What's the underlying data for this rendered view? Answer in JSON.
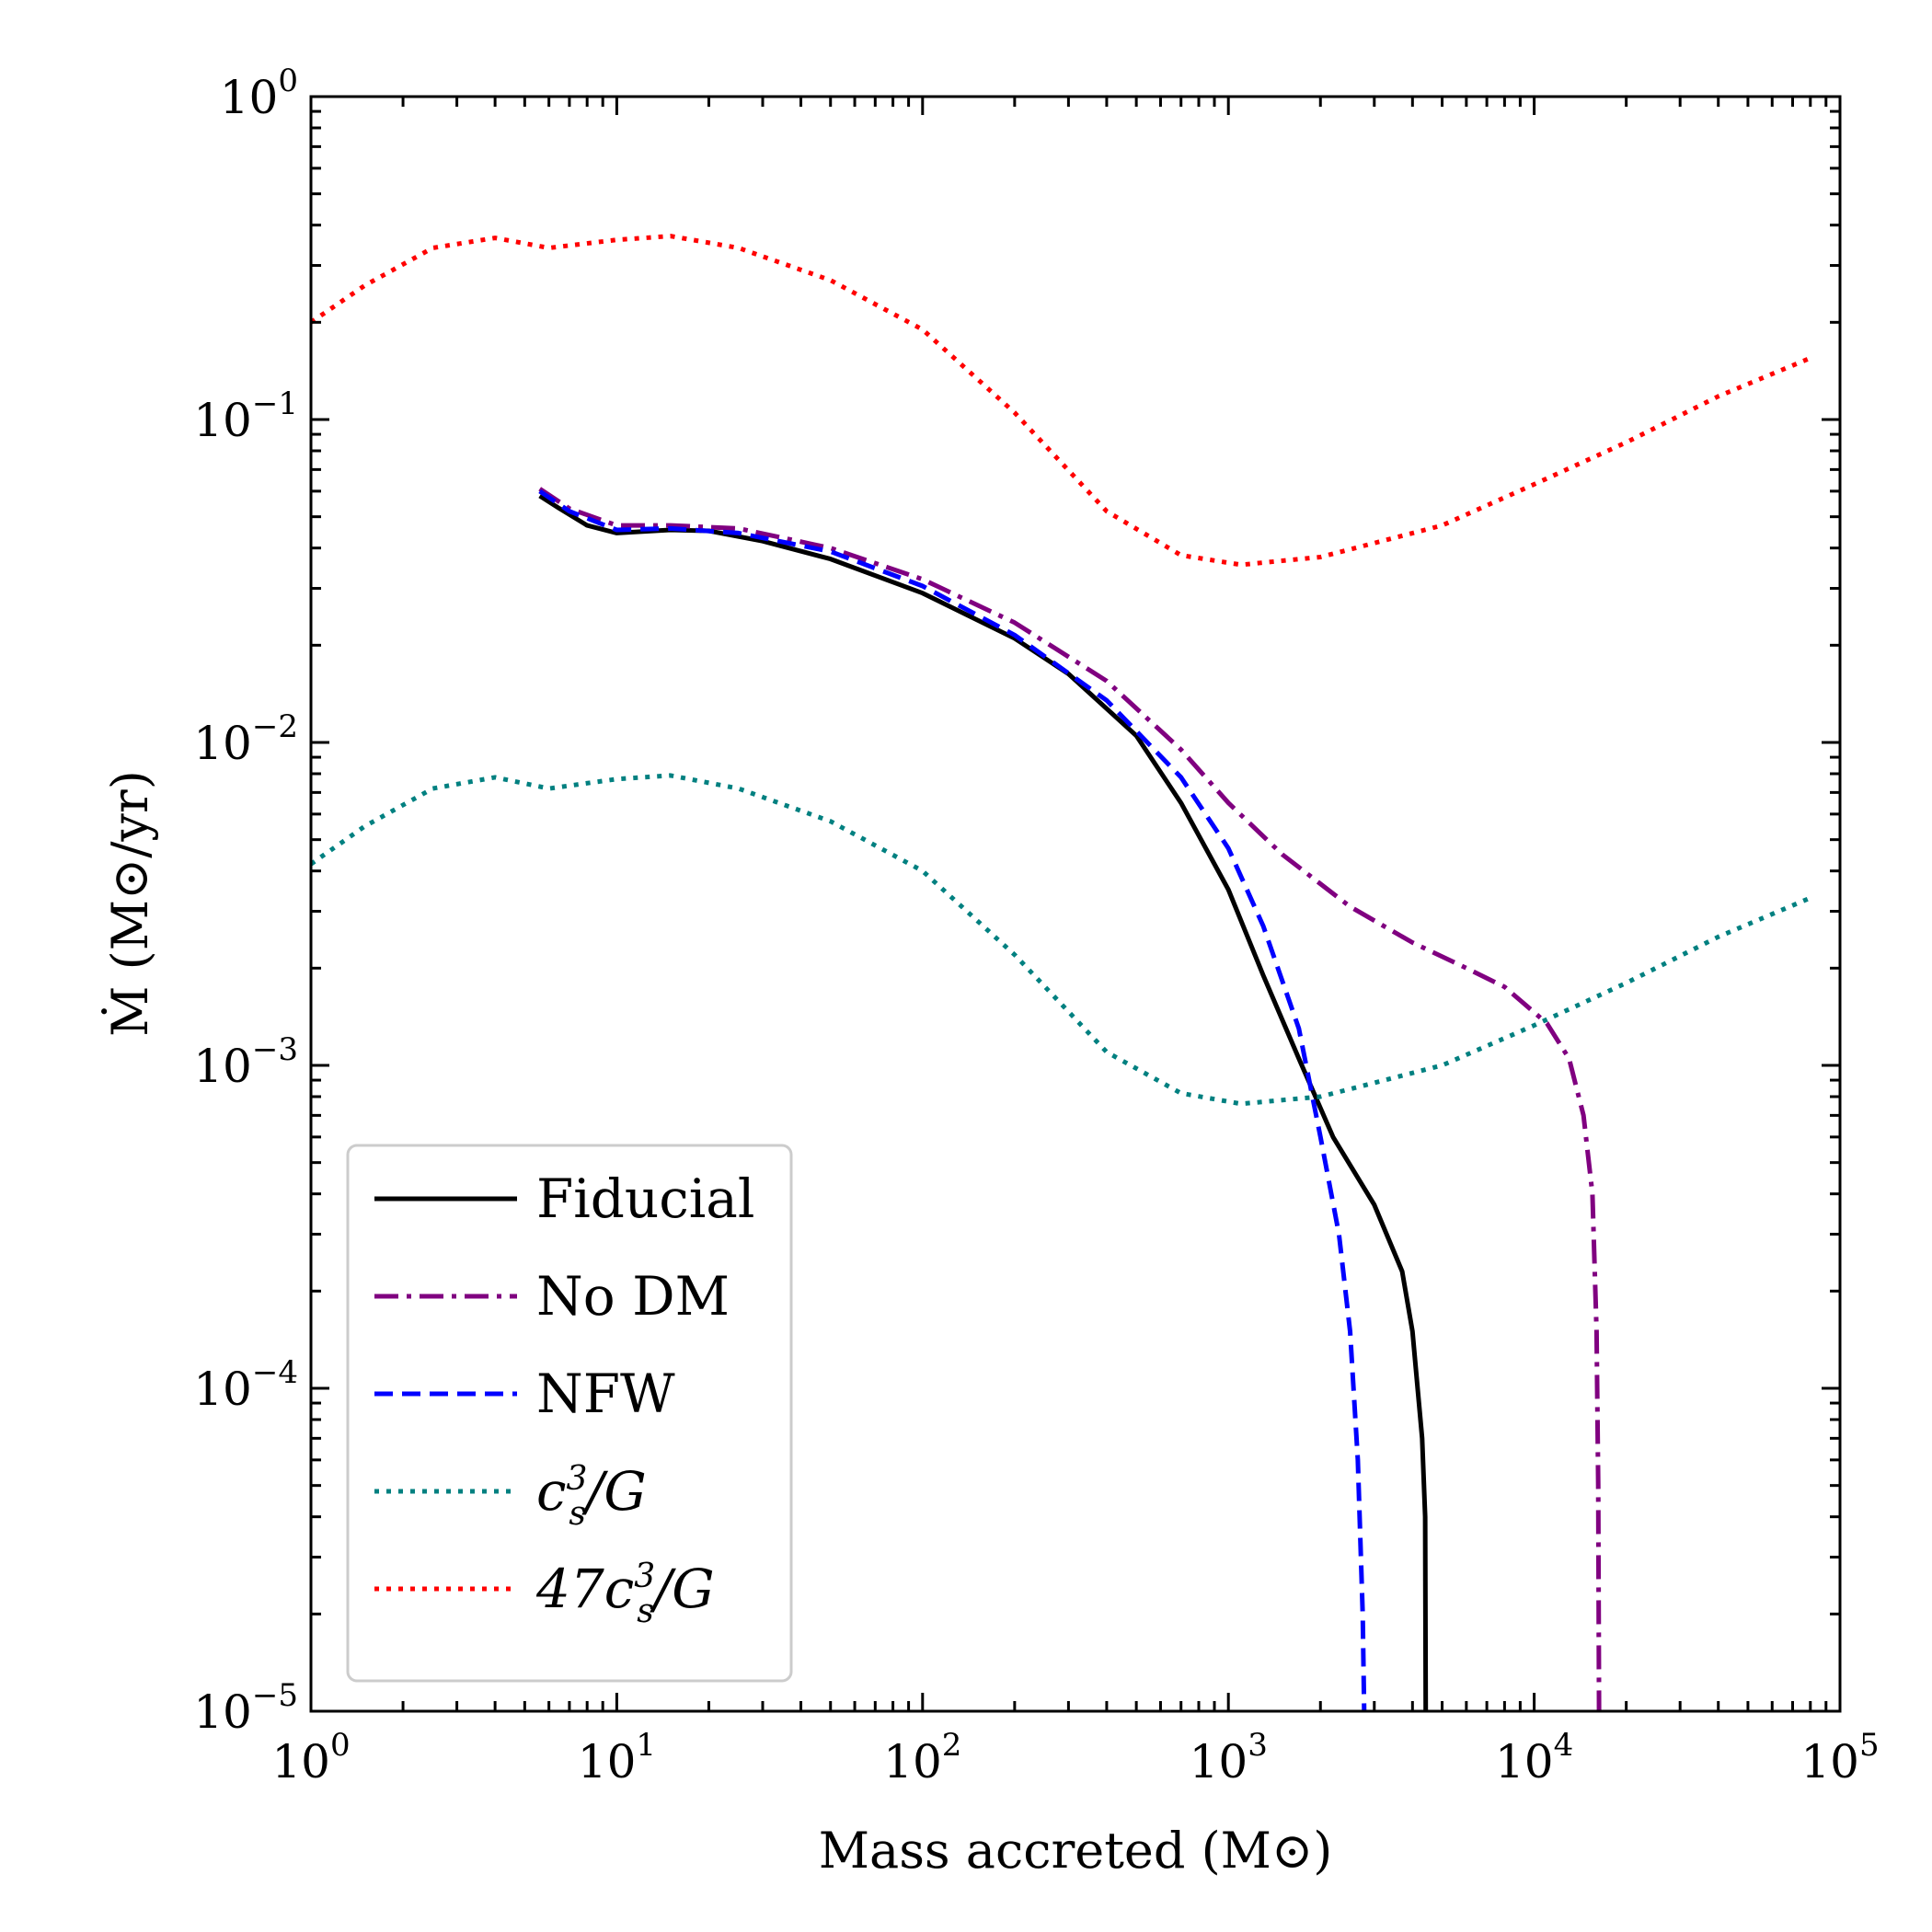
{
  "chart_data": {
    "type": "line",
    "title": "",
    "xlabel": "Mass accreted (M⊙)",
    "ylabel": "Ṁ (M⊙/yr)",
    "xscale": "log",
    "yscale": "log",
    "xlim": [
      1,
      100000
    ],
    "ylim": [
      1e-05,
      1
    ],
    "x_ticks": [
      {
        "value": 1,
        "base": "10",
        "exp": "0"
      },
      {
        "value": 10,
        "base": "10",
        "exp": "1"
      },
      {
        "value": 100,
        "base": "10",
        "exp": "2"
      },
      {
        "value": 1000,
        "base": "10",
        "exp": "3"
      },
      {
        "value": 10000,
        "base": "10",
        "exp": "4"
      },
      {
        "value": 100000,
        "base": "10",
        "exp": "5"
      }
    ],
    "y_ticks": [
      {
        "value": 1,
        "base": "10",
        "exp": "0"
      },
      {
        "value": 0.1,
        "base": "10",
        "exp": "−1"
      },
      {
        "value": 0.01,
        "base": "10",
        "exp": "−2"
      },
      {
        "value": 0.001,
        "base": "10",
        "exp": "−3"
      },
      {
        "value": 0.0001,
        "base": "10",
        "exp": "−4"
      },
      {
        "value": 1e-05,
        "base": "10",
        "exp": "−5"
      }
    ],
    "legend_position": "bottom-left",
    "series": [
      {
        "name": "Fiducial",
        "color": "#000000",
        "dash": "solid",
        "points": [
          [
            5.6,
            0.058
          ],
          [
            6.5,
            0.053
          ],
          [
            8,
            0.047
          ],
          [
            10,
            0.0445
          ],
          [
            15,
            0.0455
          ],
          [
            20,
            0.0452
          ],
          [
            30,
            0.042
          ],
          [
            50,
            0.037
          ],
          [
            100,
            0.029
          ],
          [
            200,
            0.021
          ],
          [
            300,
            0.0163
          ],
          [
            500,
            0.0105
          ],
          [
            700,
            0.0065
          ],
          [
            1000,
            0.0035
          ],
          [
            1300,
            0.0019
          ],
          [
            1700,
            0.00105
          ],
          [
            2200,
            0.0006
          ],
          [
            3000,
            0.00037
          ],
          [
            3700,
            0.00023
          ],
          [
            4000,
            0.00015
          ],
          [
            4300,
            7e-05
          ],
          [
            4400,
            4e-05
          ],
          [
            4420,
            1e-05
          ]
        ]
      },
      {
        "name": "No DM",
        "color": "#800080",
        "dash": "dashdot",
        "points": [
          [
            5.6,
            0.061
          ],
          [
            7,
            0.053
          ],
          [
            10,
            0.047
          ],
          [
            15,
            0.047
          ],
          [
            25,
            0.046
          ],
          [
            50,
            0.04
          ],
          [
            100,
            0.032
          ],
          [
            200,
            0.0235
          ],
          [
            400,
            0.0155
          ],
          [
            700,
            0.0095
          ],
          [
            1000,
            0.0065
          ],
          [
            1500,
            0.0045
          ],
          [
            2500,
            0.0031
          ],
          [
            4000,
            0.0024
          ],
          [
            6000,
            0.002
          ],
          [
            8000,
            0.00175
          ],
          [
            11000,
            0.00135
          ],
          [
            13000,
            0.00105
          ],
          [
            14500,
            0.0007
          ],
          [
            15500,
            0.0004
          ],
          [
            16000,
            0.00015
          ],
          [
            16200,
            5e-05
          ],
          [
            16300,
            1e-05
          ]
        ]
      },
      {
        "name": "NFW",
        "color": "#0000ff",
        "dash": "dashed",
        "points": [
          [
            5.6,
            0.06
          ],
          [
            7,
            0.052
          ],
          [
            10,
            0.0455
          ],
          [
            15,
            0.046
          ],
          [
            25,
            0.0445
          ],
          [
            50,
            0.039
          ],
          [
            100,
            0.0305
          ],
          [
            200,
            0.0215
          ],
          [
            400,
            0.0135
          ],
          [
            700,
            0.0078
          ],
          [
            1000,
            0.0047
          ],
          [
            1300,
            0.0027
          ],
          [
            1700,
            0.0013
          ],
          [
            2000,
            0.0006
          ],
          [
            2300,
            0.0003
          ],
          [
            2500,
            0.00015
          ],
          [
            2650,
            6e-05
          ],
          [
            2750,
            2e-05
          ],
          [
            2780,
            1e-05
          ]
        ]
      },
      {
        "name": "c_s^3/G",
        "color": "#008080",
        "dash": "dotted",
        "points": [
          [
            1,
            0.0042
          ],
          [
            1.5,
            0.0055
          ],
          [
            2.5,
            0.0072
          ],
          [
            4,
            0.0078
          ],
          [
            6,
            0.0072
          ],
          [
            10,
            0.0077
          ],
          [
            15,
            0.0079
          ],
          [
            25,
            0.0072
          ],
          [
            50,
            0.0057
          ],
          [
            100,
            0.004
          ],
          [
            200,
            0.0022
          ],
          [
            400,
            0.0011
          ],
          [
            700,
            0.00082
          ],
          [
            1100,
            0.00076
          ],
          [
            2000,
            0.0008
          ],
          [
            5000,
            0.001
          ],
          [
            10000,
            0.00133
          ],
          [
            20000,
            0.0018
          ],
          [
            40000,
            0.0025
          ],
          [
            80000,
            0.0033
          ]
        ]
      },
      {
        "name": "47c_s^3/G",
        "color": "#ff0000",
        "dash": "dotted",
        "points": [
          [
            1,
            0.2
          ],
          [
            1.5,
            0.26
          ],
          [
            2.5,
            0.34
          ],
          [
            4,
            0.365
          ],
          [
            6,
            0.34
          ],
          [
            10,
            0.36
          ],
          [
            15,
            0.37
          ],
          [
            25,
            0.34
          ],
          [
            50,
            0.27
          ],
          [
            100,
            0.19
          ],
          [
            200,
            0.105
          ],
          [
            400,
            0.052
          ],
          [
            700,
            0.038
          ],
          [
            1100,
            0.0355
          ],
          [
            2000,
            0.0375
          ],
          [
            5000,
            0.047
          ],
          [
            10000,
            0.063
          ],
          [
            20000,
            0.085
          ],
          [
            40000,
            0.118
          ],
          [
            80000,
            0.155
          ]
        ]
      }
    ]
  },
  "legend": {
    "items": [
      {
        "label": "Fiducial",
        "key": "fiducial"
      },
      {
        "label": "No DM",
        "key": "nodm"
      },
      {
        "label": "NFW",
        "key": "nfw"
      },
      {
        "label": "c",
        "sup": "3",
        "sub": "s",
        "tail": "/G",
        "key": "cs3g"
      },
      {
        "label": "47c",
        "sup": "3",
        "sub": "s",
        "tail": "/G",
        "key": "cs3g47"
      }
    ]
  }
}
